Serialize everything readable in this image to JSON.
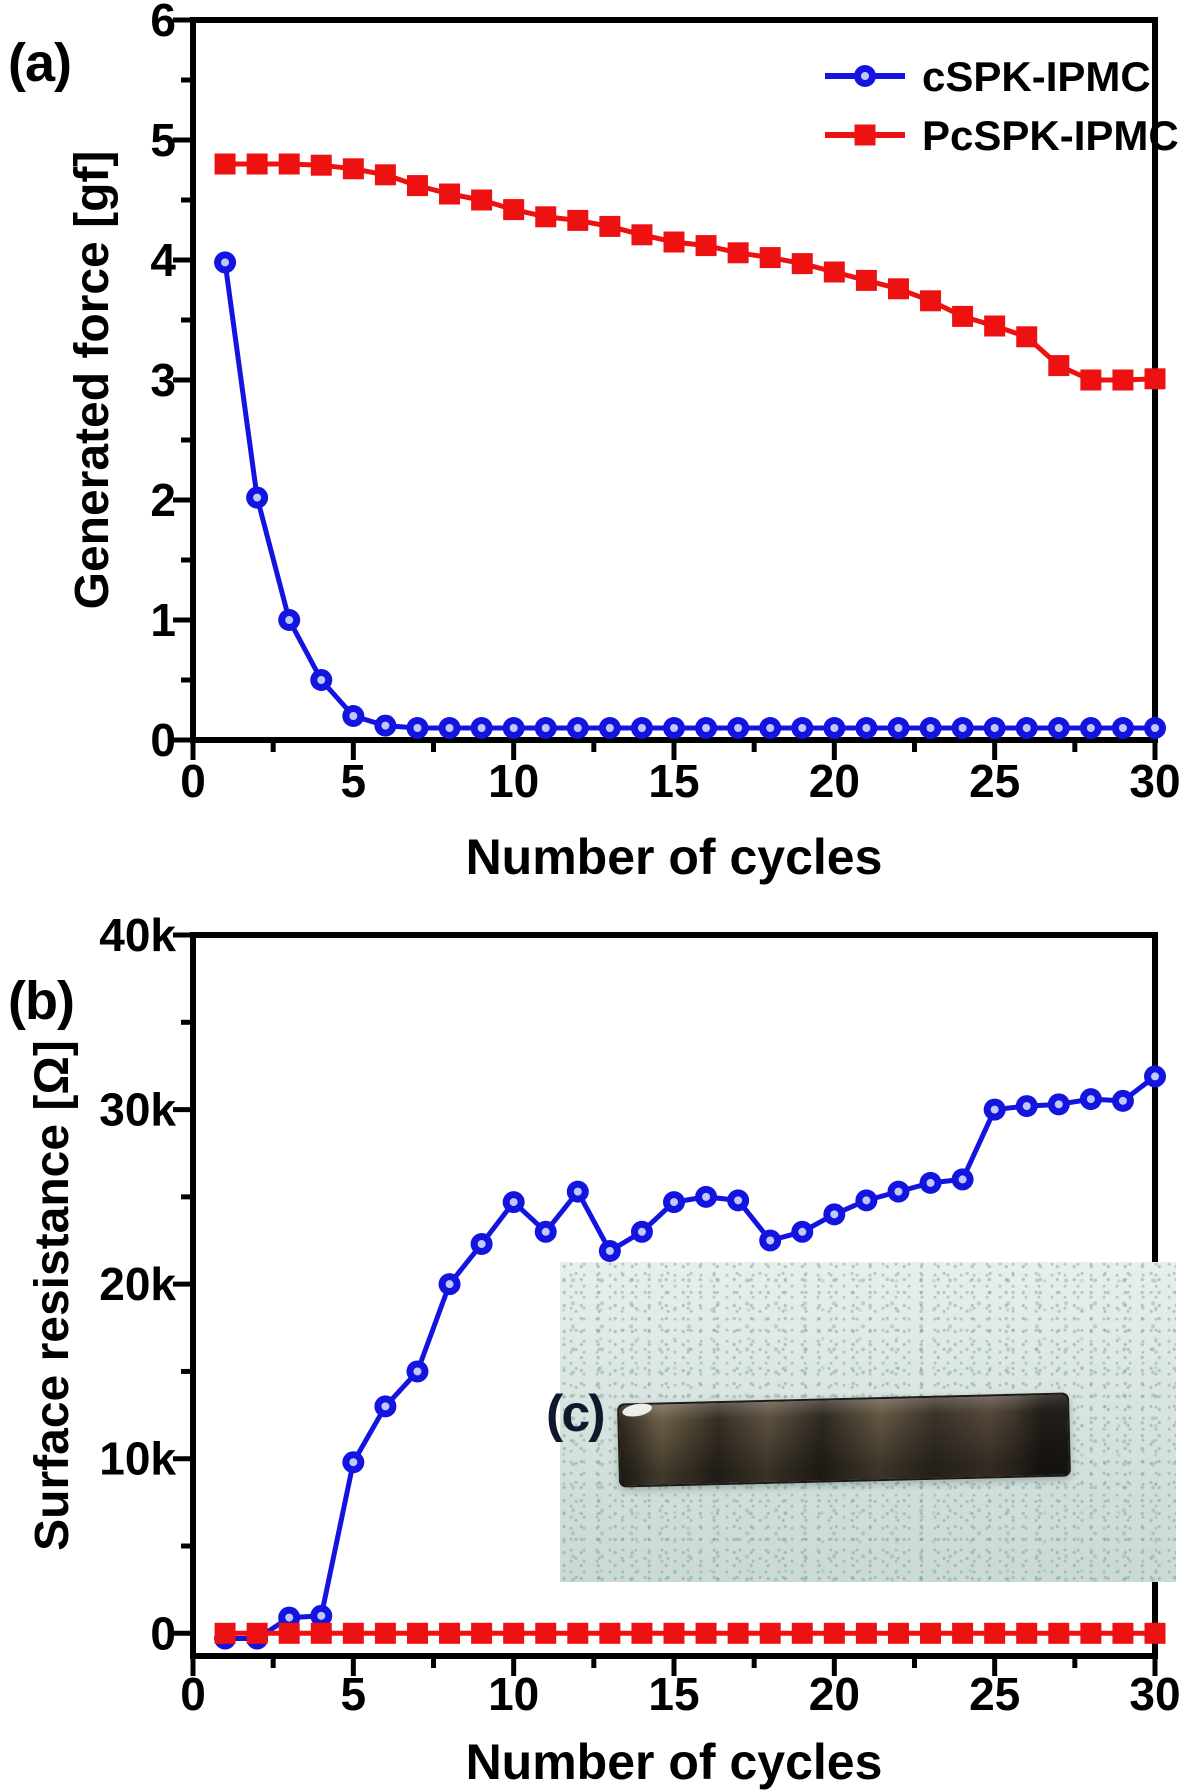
{
  "figure_title": "",
  "chart_data": [
    {
      "id": "a",
      "type": "line",
      "panel_label": "(a)",
      "xlabel": "Number of cycles",
      "ylabel": "Generated force [gf]",
      "xlim": [
        0,
        30
      ],
      "ylim": [
        0,
        6
      ],
      "xticks": [
        0,
        5,
        10,
        15,
        20,
        25,
        30
      ],
      "yticks": [
        0,
        1,
        2,
        3,
        4,
        5,
        6
      ],
      "ytick_labels": [
        "0",
        "1",
        "2",
        "3",
        "4",
        "5",
        "6"
      ],
      "x_minor_step": 2.5,
      "y_minor_step": 0.5,
      "grid": false,
      "legend_position": "top-right",
      "x": [
        1,
        2,
        3,
        4,
        5,
        6,
        7,
        8,
        9,
        10,
        11,
        12,
        13,
        14,
        15,
        16,
        17,
        18,
        19,
        20,
        21,
        22,
        23,
        24,
        25,
        26,
        27,
        28,
        29,
        30
      ],
      "series": [
        {
          "name": "cSPK-IPMC",
          "color": "#1414E0",
          "marker": "circle",
          "values": [
            3.98,
            2.02,
            1.0,
            0.5,
            0.2,
            0.12,
            0.1,
            0.1,
            0.1,
            0.1,
            0.1,
            0.1,
            0.1,
            0.1,
            0.1,
            0.1,
            0.1,
            0.1,
            0.1,
            0.1,
            0.1,
            0.1,
            0.1,
            0.1,
            0.1,
            0.1,
            0.1,
            0.1,
            0.1,
            0.1
          ]
        },
        {
          "name": "PcSPK-IPMC",
          "color": "#EE1111",
          "marker": "square",
          "values": [
            4.8,
            4.8,
            4.8,
            4.79,
            4.76,
            4.71,
            4.62,
            4.55,
            4.5,
            4.42,
            4.36,
            4.33,
            4.28,
            4.21,
            4.15,
            4.12,
            4.06,
            4.02,
            3.97,
            3.9,
            3.83,
            3.76,
            3.66,
            3.53,
            3.45,
            3.36,
            3.12,
            3.0,
            3.0,
            3.01
          ]
        }
      ]
    },
    {
      "id": "b",
      "type": "line",
      "panel_label": "(b)",
      "inset_label": "(c)",
      "inset_description": "photograph of IPMC sample strip",
      "xlabel": "Number of cycles",
      "ylabel": "Surface resistance [Ω]",
      "xlim": [
        0,
        30
      ],
      "ylim": [
        -1300,
        40000
      ],
      "xticks": [
        0,
        5,
        10,
        15,
        20,
        25,
        30
      ],
      "yticks": [
        0,
        10000,
        20000,
        30000,
        40000
      ],
      "ytick_labels": [
        "0",
        "10k",
        "20k",
        "30k",
        "40k"
      ],
      "x_minor_step": 2.5,
      "y_minor_step": 5000,
      "grid": false,
      "legend_position": "none",
      "x": [
        1,
        2,
        3,
        4,
        5,
        6,
        7,
        8,
        9,
        10,
        11,
        12,
        13,
        14,
        15,
        16,
        17,
        18,
        19,
        20,
        21,
        22,
        23,
        24,
        25,
        26,
        27,
        28,
        29,
        30
      ],
      "series": [
        {
          "name": "cSPK-IPMC",
          "color": "#1414E0",
          "marker": "circle",
          "values": [
            -300,
            -300,
            900,
            1000,
            9800,
            13000,
            15000,
            20000,
            22300,
            24700,
            23000,
            25300,
            21900,
            23000,
            24700,
            25000,
            24800,
            22500,
            23000,
            24000,
            24800,
            25300,
            25800,
            26000,
            30000,
            30200,
            30300,
            30600,
            30500,
            31900
          ]
        },
        {
          "name": "PcSPK-IPMC",
          "color": "#EE1111",
          "marker": "square",
          "values": [
            0,
            0,
            0,
            0,
            0,
            0,
            0,
            0,
            0,
            0,
            0,
            0,
            0,
            0,
            0,
            0,
            0,
            0,
            0,
            0,
            0,
            0,
            0,
            0,
            0,
            0,
            0,
            0,
            0,
            0
          ]
        }
      ]
    }
  ]
}
